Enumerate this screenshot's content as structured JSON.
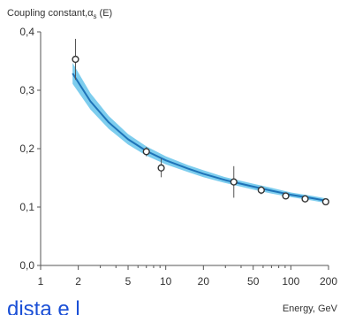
{
  "chart_data": {
    "type": "scatter",
    "title": "Coupling constant,α",
    "title_subscript": "s",
    "title_suffix": " (E)",
    "xlabel": "Energy, GeV",
    "ylabel": "",
    "x_scale": "log",
    "xlim": [
      1,
      200
    ],
    "ylim": [
      0,
      0.4
    ],
    "x_ticks": [
      1,
      2,
      5,
      10,
      20,
      50,
      100,
      200
    ],
    "x_tick_labels": [
      "1",
      "2",
      "5",
      "10",
      "20",
      "50",
      "100",
      "200"
    ],
    "y_ticks": [
      0,
      0.1,
      0.2,
      0.3,
      0.4
    ],
    "y_tick_labels": [
      "0,0",
      "0,1",
      "0,2",
      "0,3",
      "0,4"
    ],
    "grid": false,
    "points": [
      {
        "x": 1.9,
        "y": 0.353,
        "err": 0.035
      },
      {
        "x": 7.0,
        "y": 0.195,
        "err": 0.008
      },
      {
        "x": 9.2,
        "y": 0.167,
        "err": 0.016
      },
      {
        "x": 35,
        "y": 0.143,
        "err": 0.027
      },
      {
        "x": 58,
        "y": 0.129,
        "err": 0.007
      },
      {
        "x": 91,
        "y": 0.119,
        "err": 0.005
      },
      {
        "x": 130,
        "y": 0.114,
        "err": 0.004
      },
      {
        "x": 190,
        "y": 0.109,
        "err": 0.004
      }
    ],
    "fit_curve": {
      "x": [
        1.8,
        2.5,
        3.5,
        5,
        7,
        10,
        15,
        20,
        30,
        50,
        70,
        100,
        150,
        200
      ],
      "y": [
        0.329,
        0.281,
        0.245,
        0.216,
        0.196,
        0.18,
        0.166,
        0.157,
        0.146,
        0.135,
        0.128,
        0.121,
        0.115,
        0.11
      ],
      "band": [
        0.018,
        0.014,
        0.011,
        0.009,
        0.008,
        0.007,
        0.006,
        0.006,
        0.005,
        0.005,
        0.005,
        0.004,
        0.004,
        0.004
      ],
      "line_color": "#1e73b8",
      "band_color": "#6fc8ec"
    }
  },
  "footer_text": "dista e l"
}
